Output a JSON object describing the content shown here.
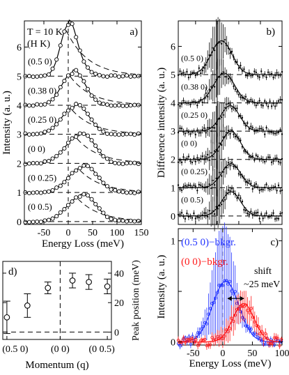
{
  "chart_data": [
    {
      "panel_label": "a)",
      "type": "line",
      "title_lines": [
        "T = 10 K",
        "(H K)"
      ],
      "xlabel": "Energy Loss (meV)",
      "ylabel": "Intensity (a. u.)",
      "xlim": [
        -90,
        150
      ],
      "ylim": [
        -0.1,
        6.9
      ],
      "xticks": [
        -50,
        0,
        50,
        100,
        150
      ],
      "yticks": [
        0,
        1,
        2,
        3,
        4,
        5,
        6
      ],
      "annotations": [
        "(0.5 0)",
        "(0.38 0)",
        "(0.25 0)",
        "(0 0)",
        "(0 0.25)",
        "(0 0.5)"
      ],
      "series": [
        {
          "baseline": 5,
          "peak_x": 0,
          "peak_height": 1.75,
          "width": 16,
          "x": [
            -90,
            -60,
            -40,
            -20,
            -10,
            0,
            10,
            20,
            40,
            60,
            80,
            100,
            150
          ],
          "y": [
            5.0,
            5.02,
            5.1,
            5.5,
            6.1,
            6.75,
            6.5,
            6.2,
            5.7,
            5.3,
            5.1,
            5.02,
            5.0
          ]
        },
        {
          "baseline": 4,
          "peak_x": 8,
          "peak_height": 1.1,
          "width": 22,
          "x": [
            -90,
            -60,
            -40,
            -20,
            0,
            10,
            20,
            40,
            60,
            80,
            100,
            150
          ],
          "y": [
            4.0,
            4.02,
            4.08,
            4.4,
            4.9,
            5.1,
            5.05,
            4.85,
            4.45,
            4.15,
            4.04,
            4.0
          ]
        },
        {
          "baseline": 3,
          "peak_x": 12,
          "peak_height": 0.93,
          "width": 26,
          "x": [
            -90,
            -60,
            -40,
            -20,
            0,
            10,
            20,
            40,
            60,
            80,
            100,
            150
          ],
          "y": [
            3.0,
            3.02,
            3.06,
            3.35,
            3.82,
            3.93,
            3.92,
            3.78,
            3.45,
            3.15,
            3.04,
            3.0
          ]
        },
        {
          "baseline": 2,
          "peak_x": 22,
          "peak_height": 0.95,
          "width": 28,
          "x": [
            -90,
            -60,
            -40,
            -20,
            0,
            10,
            20,
            30,
            40,
            60,
            80,
            100,
            150
          ],
          "y": [
            2.0,
            2.02,
            2.05,
            2.2,
            2.6,
            2.85,
            2.95,
            2.95,
            2.85,
            2.55,
            2.2,
            2.05,
            2.0
          ]
        },
        {
          "baseline": 1,
          "peak_x": 28,
          "peak_height": 0.85,
          "width": 28,
          "x": [
            -90,
            -60,
            -40,
            -20,
            0,
            10,
            20,
            30,
            40,
            60,
            80,
            100,
            150
          ],
          "y": [
            1.0,
            1.02,
            1.04,
            1.12,
            1.45,
            1.7,
            1.82,
            1.85,
            1.8,
            1.55,
            1.25,
            1.06,
            1.0
          ]
        },
        {
          "baseline": 0,
          "peak_x": 25,
          "peak_height": 0.85,
          "width": 28,
          "x": [
            -90,
            -60,
            -40,
            -20,
            0,
            10,
            20,
            30,
            40,
            60,
            80,
            100,
            150
          ],
          "y": [
            0.0,
            0.02,
            0.05,
            0.2,
            0.6,
            0.78,
            0.84,
            0.85,
            0.78,
            0.5,
            0.2,
            0.05,
            0.0
          ]
        }
      ]
    },
    {
      "panel_label": "b)",
      "type": "line",
      "xlabel": "",
      "ylabel": "Difference intensity (a. u.)",
      "xlim": [
        -90,
        150
      ],
      "ylim": [
        -0.3,
        6.9
      ],
      "yticks": [
        0,
        1,
        2,
        3,
        4,
        5,
        6
      ],
      "annotations": [
        "(0.5 0)",
        "(0.38 0)",
        "(0.25 0)",
        "(0 0)",
        "(0 0.25)",
        "(0 0.5)"
      ],
      "series": [
        {
          "baseline": 5,
          "peak_x": 10,
          "peak_height": 1.2,
          "width": 24
        },
        {
          "baseline": 4,
          "peak_x": 16,
          "peak_height": 1.05,
          "width": 24
        },
        {
          "baseline": 3,
          "peak_x": 30,
          "peak_height": 0.9,
          "width": 22
        },
        {
          "baseline": 2,
          "peak_x": 32,
          "peak_height": 1.0,
          "width": 22
        },
        {
          "baseline": 1,
          "peak_x": 32,
          "peak_height": 0.85,
          "width": 22
        },
        {
          "baseline": 0,
          "peak_x": 32,
          "peak_height": 0.85,
          "width": 22
        }
      ]
    },
    {
      "panel_label": "c)",
      "type": "line",
      "xlabel": "Energy Loss (meV)",
      "ylabel": "Intensity (a. u.)",
      "xlim": [
        -75,
        100
      ],
      "ylim": [
        -0.03,
        1.12
      ],
      "xticks": [
        -50,
        0,
        50,
        100
      ],
      "yticks": [
        0,
        0.5,
        1
      ],
      "ytick_labels": [
        "0",
        "",
        "1"
      ],
      "annotations": [
        "shift",
        "~25 meV"
      ],
      "series": [
        {
          "name": "(0.5 0)−bkgr.",
          "color": "#2233ff",
          "peak_x": 5,
          "peak_height": 0.6,
          "width": 22
        },
        {
          "name": "(0 0)−bkgr.",
          "color": "#ff1a1a",
          "peak_x": 35,
          "peak_height": 0.38,
          "width": 18
        }
      ]
    },
    {
      "panel_label": "d)",
      "type": "scatter",
      "xlabel": "Momentum (q)",
      "ylabel": "Peak position (meV)",
      "ylim": [
        -5,
        48
      ],
      "yticks": [
        0,
        20,
        40
      ],
      "xtick_labels": [
        "(0.5 0)",
        "(0 0)",
        "(0 0.5)"
      ],
      "x": [
        0,
        0.5,
        1.0,
        1.6,
        2.0,
        2.45
      ],
      "y": [
        10,
        18,
        30,
        35,
        34,
        31
      ],
      "yerr": [
        11,
        8,
        4,
        5,
        5,
        5
      ]
    }
  ],
  "colors": {
    "blue": "#2233ff",
    "red": "#ff1a1a"
  }
}
